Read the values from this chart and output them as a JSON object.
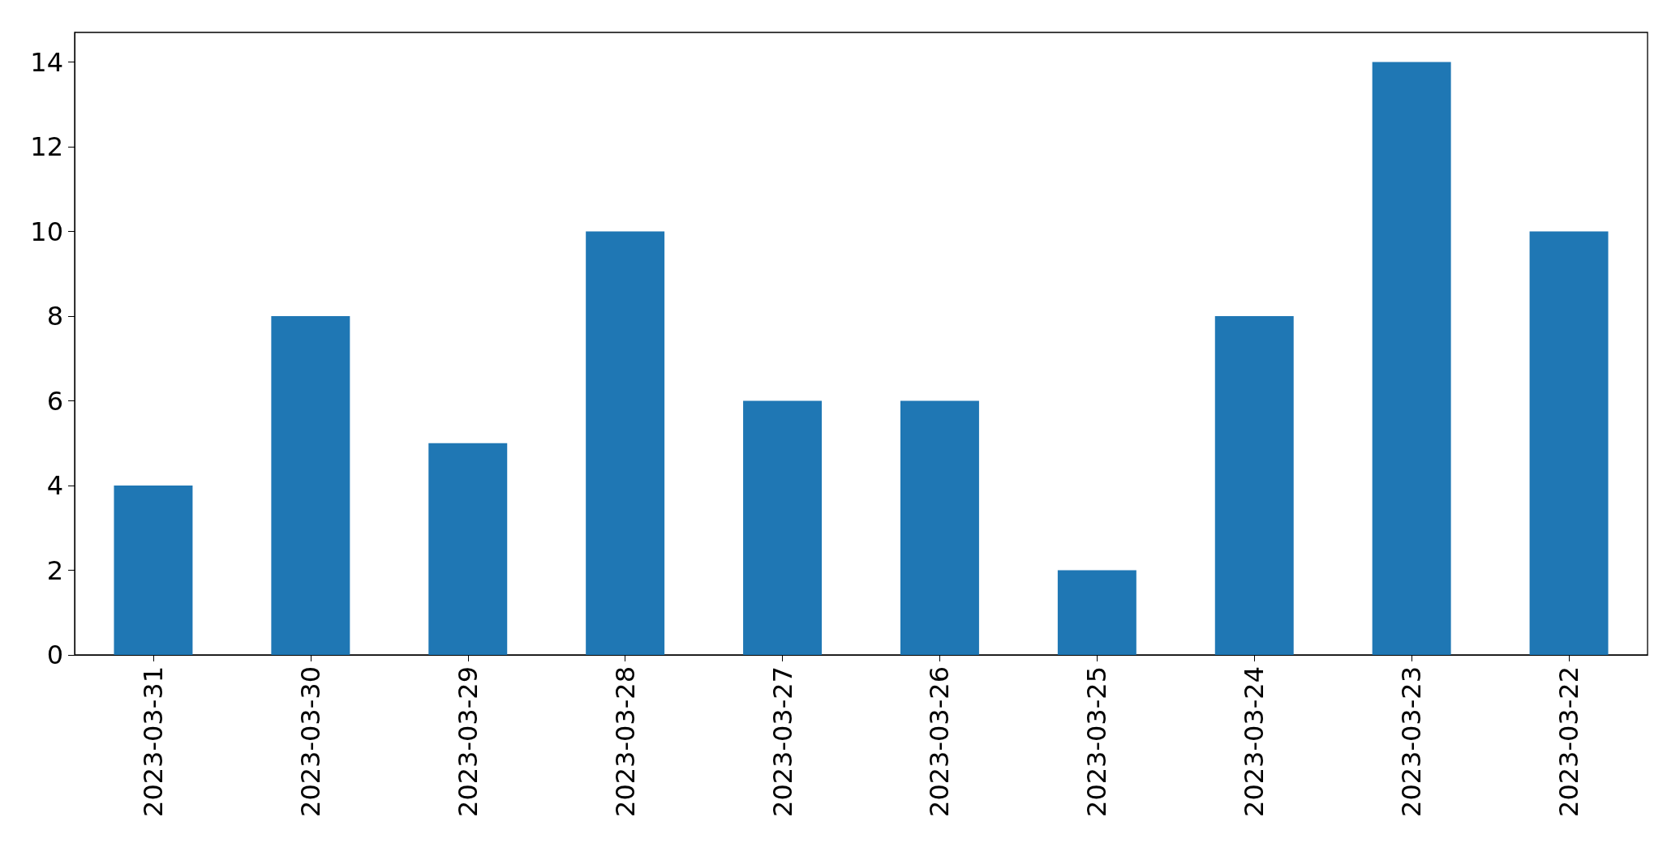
{
  "chart_data": {
    "type": "bar",
    "categories": [
      "2023-03-31",
      "2023-03-30",
      "2023-03-29",
      "2023-03-28",
      "2023-03-27",
      "2023-03-26",
      "2023-03-25",
      "2023-03-24",
      "2023-03-23",
      "2023-03-22"
    ],
    "values": [
      4,
      8,
      5,
      10,
      6,
      6,
      2,
      8,
      14,
      10
    ],
    "color": "#1f77b4",
    "ylim": [
      0,
      14.7
    ],
    "yticks": [
      0,
      2,
      4,
      6,
      8,
      10,
      12,
      14
    ],
    "grid": false
  }
}
